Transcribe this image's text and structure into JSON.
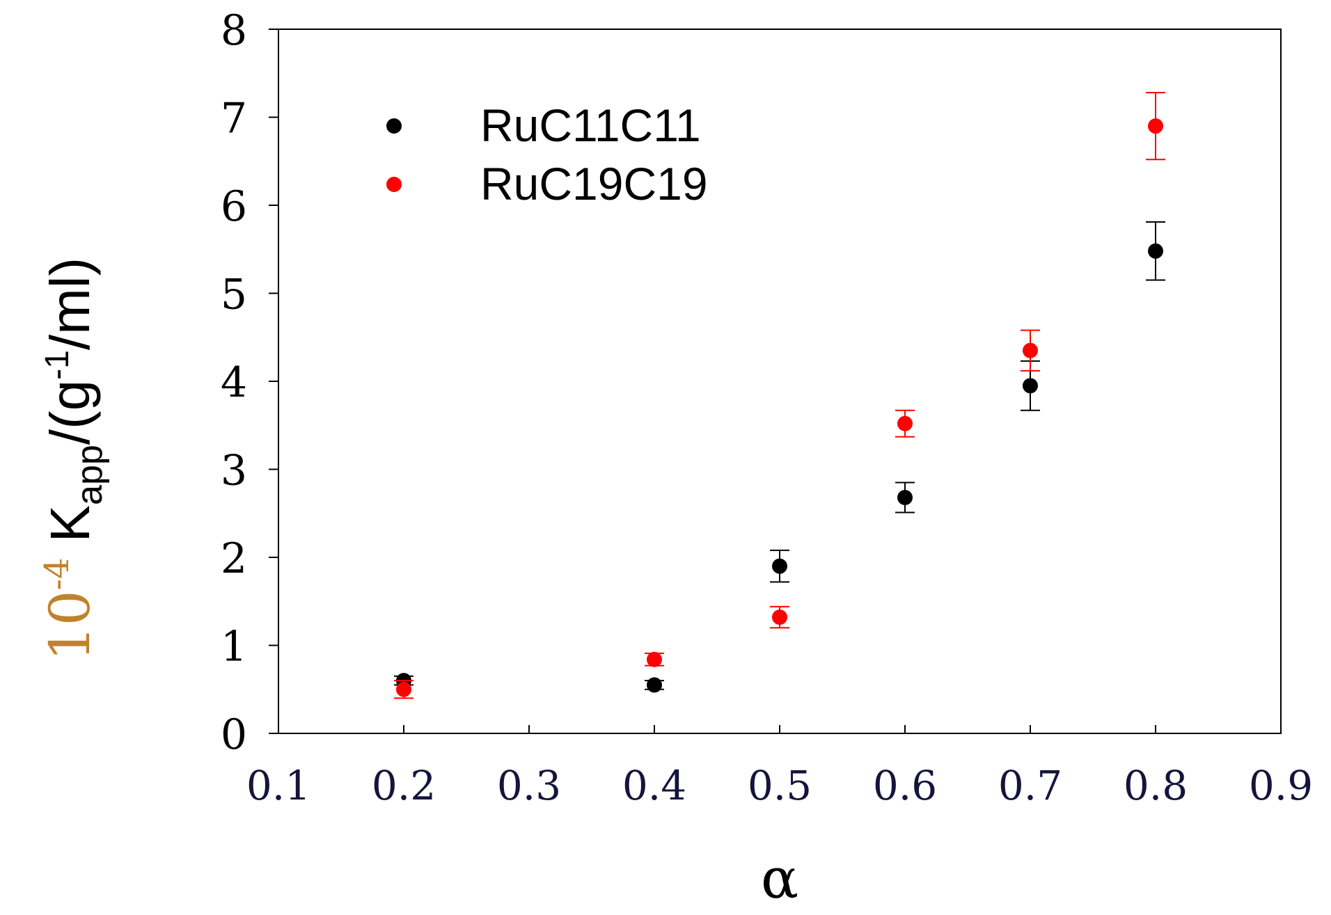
{
  "chart_data": {
    "type": "scatter",
    "title": "",
    "xlabel": "α",
    "ylabel": {
      "prefix": "10",
      "prefix_exp": "-4",
      "main": " K",
      "sub": "app",
      "unit_open": "/(g",
      "unit_exp": "-1",
      "unit_close": "/ml)"
    },
    "xlim": [
      0.1,
      0.9
    ],
    "ylim": [
      0,
      8
    ],
    "xticks": [
      "0.1",
      "0.2",
      "0.3",
      "0.4",
      "0.5",
      "0.6",
      "0.7",
      "0.8",
      "0.9"
    ],
    "yticks": [
      "0",
      "1",
      "2",
      "3",
      "4",
      "5",
      "6",
      "7",
      "8"
    ],
    "grid": false,
    "legend_position": "top-left",
    "series": [
      {
        "name": "RuC11C11",
        "color": "#000000",
        "x": [
          0.2,
          0.4,
          0.5,
          0.6,
          0.7,
          0.8
        ],
        "y": [
          0.6,
          0.55,
          1.9,
          2.68,
          3.95,
          5.48
        ],
        "err": [
          0.05,
          0.05,
          0.18,
          0.17,
          0.28,
          0.33
        ]
      },
      {
        "name": "RuC19C19",
        "color": "#ff0000",
        "x": [
          0.2,
          0.4,
          0.5,
          0.6,
          0.7,
          0.8
        ],
        "y": [
          0.5,
          0.84,
          1.32,
          3.52,
          4.35,
          6.9
        ],
        "err": [
          0.1,
          0.07,
          0.12,
          0.15,
          0.23,
          0.38
        ]
      }
    ]
  }
}
